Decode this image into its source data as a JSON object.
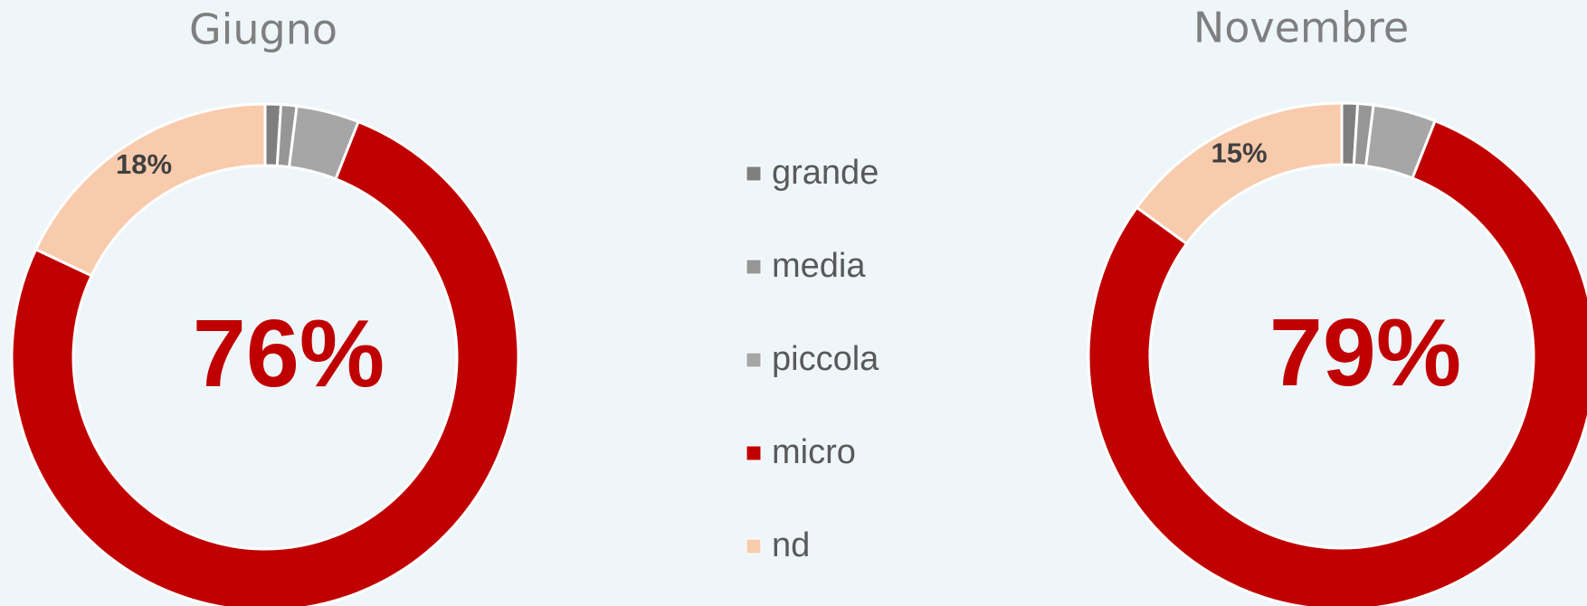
{
  "chart_data": [
    {
      "type": "pie",
      "title": "Giugno",
      "categories": [
        "grande",
        "media",
        "piccola",
        "micro",
        "nd"
      ],
      "values": [
        1,
        1,
        4,
        76,
        18
      ],
      "value_labels": [
        null,
        null,
        null,
        "76%",
        "18%"
      ],
      "colors": [
        "#7f7f7f",
        "#969696",
        "#a6a6a6",
        "#c00000",
        "#f8cbad"
      ]
    },
    {
      "type": "pie",
      "title": "Novembre",
      "categories": [
        "grande",
        "media",
        "piccola",
        "micro",
        "nd"
      ],
      "values": [
        1,
        1,
        4,
        79,
        15
      ],
      "value_labels": [
        null,
        null,
        null,
        "79%",
        "15%"
      ],
      "colors": [
        "#7f7f7f",
        "#969696",
        "#a6a6a6",
        "#c00000",
        "#f8cbad"
      ]
    }
  ]
}
